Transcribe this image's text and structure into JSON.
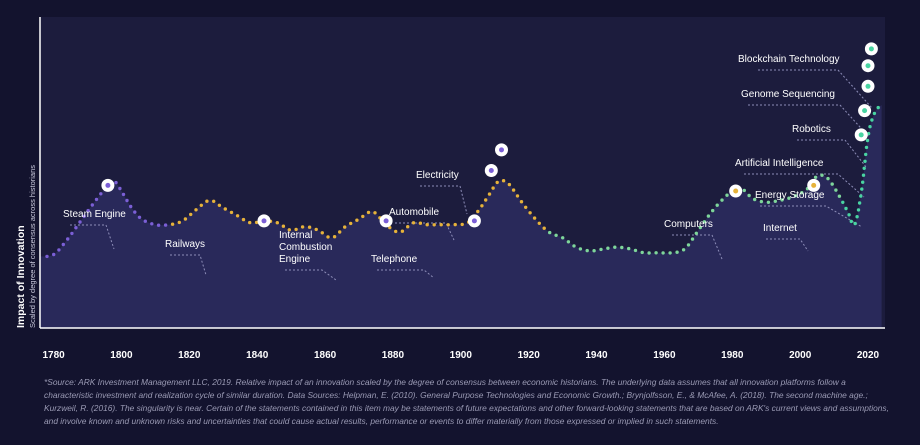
{
  "chart_data": {
    "type": "line",
    "title": "",
    "ylabel": "Impact of Innovation",
    "ylabel_sub": "Scaled by degree of consensus across historians",
    "xlabel": "",
    "xlim": [
      1776,
      2025
    ],
    "ylim": [
      0,
      100
    ],
    "x_ticks": [
      1780,
      1800,
      1820,
      1840,
      1860,
      1880,
      1900,
      1920,
      1940,
      1960,
      1980,
      2000,
      2020
    ],
    "curve": {
      "x": [
        1776,
        1780,
        1784,
        1788,
        1792,
        1796,
        1798,
        1800,
        1803,
        1806,
        1810,
        1814,
        1818,
        1822,
        1826,
        1830,
        1834,
        1838,
        1842,
        1846,
        1850,
        1854,
        1858,
        1862,
        1866,
        1870,
        1874,
        1878,
        1882,
        1886,
        1890,
        1894,
        1898,
        1902,
        1905,
        1908,
        1911,
        1914,
        1918,
        1922,
        1926,
        1930,
        1934,
        1938,
        1942,
        1946,
        1950,
        1954,
        1958,
        1962,
        1966,
        1970,
        1974,
        1978,
        1982,
        1986,
        1990,
        1994,
        1998,
        2002,
        2005,
        2008,
        2011,
        2014,
        2016,
        2018,
        2020,
        2022,
        2024
      ],
      "y": [
        -4,
        -3,
        5,
        15,
        25,
        34,
        36,
        31,
        22,
        16,
        13,
        13,
        15,
        21,
        26,
        22,
        18,
        14,
        15,
        14,
        10,
        12,
        10,
        6,
        12,
        16,
        20,
        13,
        9,
        14,
        13,
        13,
        13,
        14,
        20,
        28,
        36,
        35,
        25,
        16,
        9,
        6,
        1,
        -1,
        0,
        1,
        0,
        -2,
        -2,
        -2,
        0,
        10,
        20,
        28,
        33,
        27,
        25,
        26,
        28,
        32,
        39,
        38,
        30,
        20,
        13,
        30,
        60,
        73,
        77
      ],
      "segment_colors": [
        {
          "until": 1815,
          "color": "#7b5fd6"
        },
        {
          "until": 1925,
          "color": "#e6b23a"
        },
        {
          "until": 1980,
          "color": "#7ed69a"
        },
        {
          "until": 2012,
          "color": "#7ed69a"
        },
        {
          "until": 2025,
          "color": "#49d4a2"
        }
      ]
    },
    "annotations": [
      {
        "label": [
          "Steam Engine"
        ],
        "x": 1796,
        "y": 34,
        "dot": "#7b5fd6"
      },
      {
        "label": [
          "Railways"
        ],
        "x": 1842,
        "y": 15,
        "dot": "#7b5fd6"
      },
      {
        "label": [
          "Internal",
          "Combustion",
          "Engine"
        ],
        "x": 1878,
        "y": 15,
        "dot": "#7b5fd6"
      },
      {
        "label": [
          "Telephone"
        ],
        "x": 1904,
        "y": 15,
        "dot": "#7b5fd6"
      },
      {
        "label": [
          "Automobile"
        ],
        "x": 1909,
        "y": 42,
        "dot": "#7b5fd6"
      },
      {
        "label": [
          "Electricity"
        ],
        "x": 1912,
        "y": 53,
        "dot": "#7b5fd6"
      },
      {
        "label": [
          "Computers"
        ],
        "x": 1981,
        "y": 31,
        "dot": "#e6b23a"
      },
      {
        "label": [
          "Internet"
        ],
        "x": 2004,
        "y": 34,
        "dot": "#e6b23a"
      },
      {
        "label": [
          "Energy Storage"
        ],
        "x": 2018,
        "y": 61,
        "dot": "#49d4a2"
      },
      {
        "label": [
          "Artificial Intelligence"
        ],
        "x": 2019,
        "y": 74,
        "dot": "#49d4a2"
      },
      {
        "label": [
          "Robotics"
        ],
        "x": 2020,
        "y": 87,
        "dot": "#49d4a2"
      },
      {
        "label": [
          "Genome Sequencing"
        ],
        "x": 2020,
        "y": 98,
        "dot": "#49d4a2"
      },
      {
        "label": [
          "Blockchain Technology"
        ],
        "x": 2021,
        "y": 107,
        "dot": "#49d4a2"
      }
    ]
  },
  "footnote": "*Source: ARK Investment Management LLC, 2019. Relative impact of an innovation scaled by the degree of consensus between economic historians. The underlying data assumes that all innovation platforms follow a characteristic investment and realization cycle of similar duration. Data Sources: Helpman, E. (2010). General Purpose Technologies and Economic Growth.; Brynjolfsson, E., & McAfee, A. (2018). The second machine age.; Kurzweil, R. (2016). The singularity is near. Certain of the statements contained in this item may be statements of future expectations and other forward-looking statements that are based on ARK's current views and assumptions, and involve known and unknown risks and uncertainties that could cause actual results, performance or events to differ materially from those expressed or implied in such statements.",
  "colors": {
    "background": "#13132e",
    "plot_fill": "#1c1c3d",
    "area_fill": "#29295a",
    "axis": "#ffffff",
    "leader": "#8d8db8"
  }
}
